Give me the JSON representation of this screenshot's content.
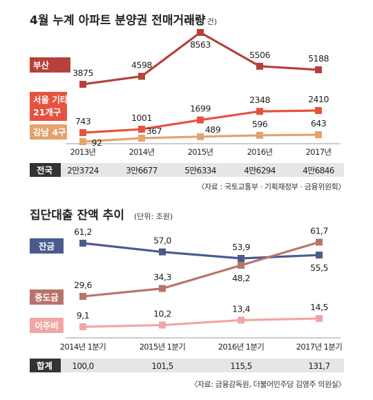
{
  "chart_data": [
    {
      "type": "line",
      "title": "4월 누계 아파트 분양권 전매거래량",
      "unit": "(단위: 건)",
      "x": [
        "2013년",
        "2014년",
        "2015년",
        "2016년",
        "2017년"
      ],
      "series": [
        {
          "name": "부산",
          "values": [
            3875,
            4598,
            8563,
            5506,
            5188
          ],
          "color": "#b5423a"
        },
        {
          "name": "서울 기타 21개구",
          "values": [
            743,
            1001,
            1699,
            2348,
            2410
          ],
          "color": "#e5533f"
        },
        {
          "name": "강남 4구",
          "values": [
            92,
            367,
            489,
            596,
            643
          ],
          "color": "#e3a36e"
        }
      ],
      "totals_label": "전국",
      "totals": [
        "2만3724",
        "3만6677",
        "5만6334",
        "4만6294",
        "4만6846"
      ],
      "source": "〈자료 : 국토교통부 · 기획재정부 · 금융위원회〉"
    },
    {
      "type": "line",
      "title": "집단대출 잔액 추이",
      "unit": "(단위: 조원)",
      "x": [
        "2014년 1분기",
        "2015년 1분기",
        "2016년 1분기",
        "2017년 1분기"
      ],
      "series": [
        {
          "name": "잔금",
          "values": [
            61.2,
            57.0,
            53.9,
            55.5
          ],
          "labels": [
            "61,2",
            "57,0",
            "53,9",
            "55,5"
          ],
          "color": "#4a5b8f"
        },
        {
          "name": "중도금",
          "values": [
            29.6,
            34.3,
            48.2,
            61.7
          ],
          "labels": [
            "29,6",
            "34,3",
            "48,2",
            "61,7"
          ],
          "color": "#b97469"
        },
        {
          "name": "이주비",
          "values": [
            9.1,
            10.2,
            13.4,
            14.5
          ],
          "labels": [
            "9,1",
            "10,2",
            "13,4",
            "14,5"
          ],
          "color": "#f2a5a5"
        }
      ],
      "totals_label": "합계",
      "totals": [
        "100,0",
        "101,5",
        "115,5",
        "131,7"
      ],
      "source": "〈자료: 금융감독원, 더불어민주당 김영주 의원실〉"
    }
  ]
}
